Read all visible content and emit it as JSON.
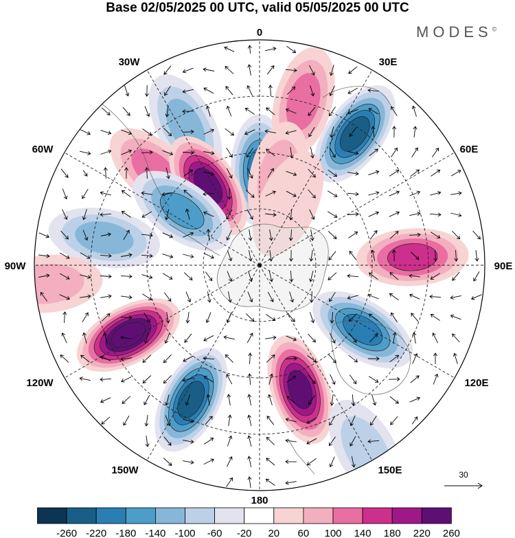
{
  "title": "Base 02/05/2025 00 UTC, valid 05/05/2025 00 UTC",
  "brand": "MODES",
  "brand_mark": "©",
  "map": {
    "projection": "south polar stereographic",
    "longitude_labels": {
      "top": "0",
      "upper_left": "30W",
      "upper_right": "30E",
      "mid_left": "60W",
      "mid_right": "60E",
      "left": "90W",
      "right": "90E",
      "lower_left": "120W",
      "lower_right": "120E",
      "bottom_left": "150W",
      "bottom_right": "150E",
      "bottom": "180"
    },
    "vector_reference": "30",
    "anomaly_centers": [
      {
        "lon": -28,
        "colat": 0.7,
        "value": -120
      },
      {
        "lon": 0,
        "colat": 0.42,
        "value": -200
      },
      {
        "lon": 36,
        "colat": 0.72,
        "value": -230
      },
      {
        "lon": 15,
        "colat": 0.75,
        "value": 130
      },
      {
        "lon": 12,
        "colat": 0.4,
        "value": 80
      },
      {
        "lon": -48,
        "colat": 0.62,
        "value": 100
      },
      {
        "lon": -33,
        "colat": 0.42,
        "value": 230
      },
      {
        "lon": -55,
        "colat": 0.42,
        "value": -140
      },
      {
        "lon": -80,
        "colat": 0.7,
        "value": -100
      },
      {
        "lon": -118,
        "colat": 0.66,
        "value": 260
      },
      {
        "lon": -153,
        "colat": 0.67,
        "value": -250
      },
      {
        "lon": 162,
        "colat": 0.58,
        "value": 250
      },
      {
        "lon": 122,
        "colat": 0.54,
        "value": -210
      },
      {
        "lon": 87,
        "colat": 0.68,
        "value": 140
      },
      {
        "lon": 25,
        "colat": 0.3,
        "value": 40
      },
      {
        "lon": 150,
        "colat": 0.95,
        "value": -60
      },
      {
        "lon": -95,
        "colat": 0.95,
        "value": 60
      }
    ]
  },
  "colorbar": {
    "ticks": [
      "-260",
      "-220",
      "-180",
      "-140",
      "-100",
      "-60",
      "-20",
      "20",
      "60",
      "100",
      "140",
      "180",
      "220",
      "260"
    ],
    "colors": [
      "#0c3554",
      "#195e86",
      "#2a7eb4",
      "#4d9dcb",
      "#86b7d8",
      "#bcd0e7",
      "#e2e3ef",
      "#ffffff",
      "#f7d3d3",
      "#f3afbf",
      "#e96ea2",
      "#cd2f8c",
      "#9f1889",
      "#5f0f74"
    ]
  }
}
